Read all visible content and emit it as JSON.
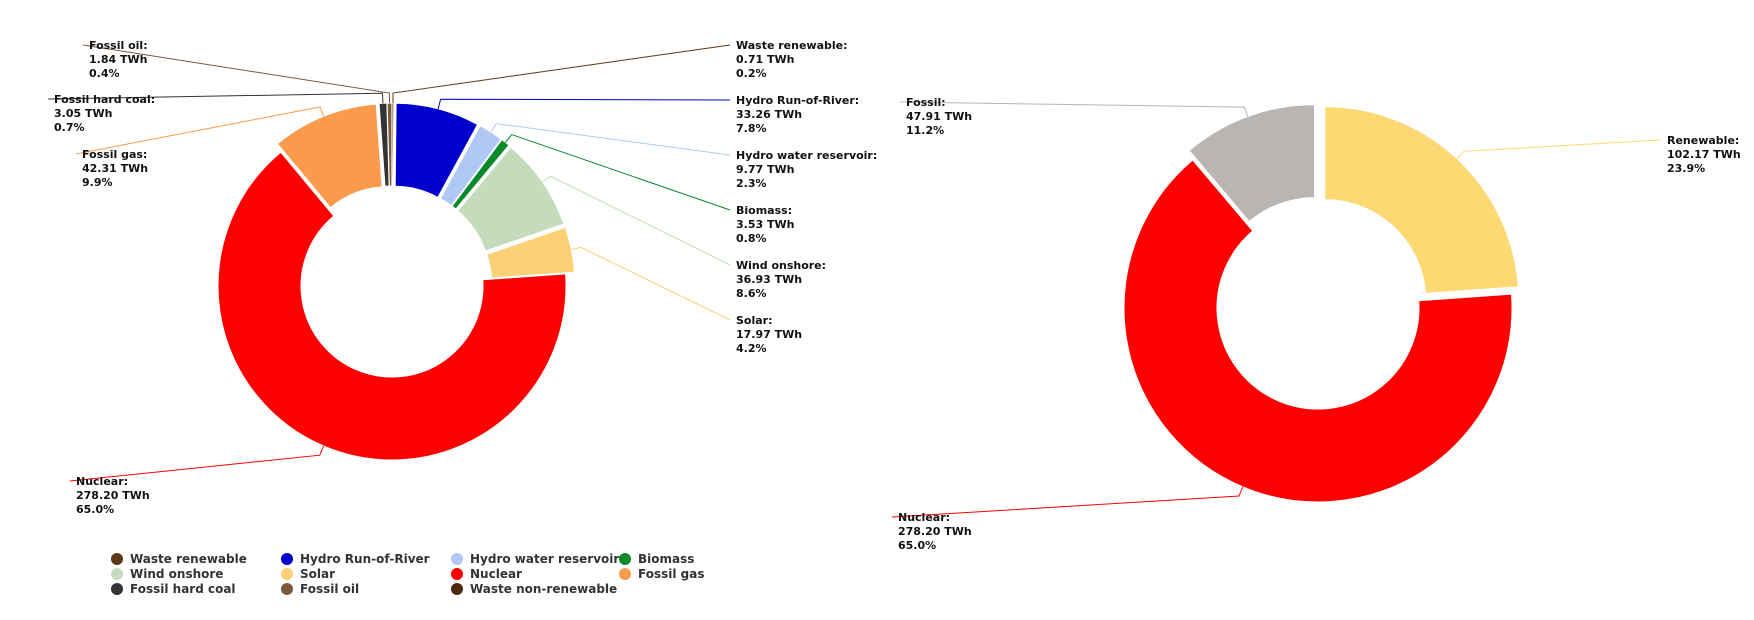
{
  "chart_data": [
    {
      "type": "pie",
      "variant": "donut",
      "unit": "TWh",
      "slices": [
        {
          "name": "Waste renewable",
          "label": "Waste renewable:",
          "value": 0.71,
          "value_text": "0.71 TWh",
          "percent_text": "0.2%",
          "color": "#5a3a14"
        },
        {
          "name": "Hydro Run-of-River",
          "label": "Hydro Run-of-River:",
          "value": 33.26,
          "value_text": "33.26 TWh",
          "percent_text": "7.8%",
          "color": "#0000cc"
        },
        {
          "name": "Hydro water reservoir",
          "label": "Hydro water reservoir:",
          "value": 9.77,
          "value_text": "9.77 TWh",
          "percent_text": "2.3%",
          "color": "#b0c8f5"
        },
        {
          "name": "Biomass",
          "label": "Biomass:",
          "value": 3.53,
          "value_text": "3.53 TWh",
          "percent_text": "0.8%",
          "color": "#0a8a2a"
        },
        {
          "name": "Wind onshore",
          "label": "Wind onshore:",
          "value": 36.93,
          "value_text": "36.93 TWh",
          "percent_text": "8.6%",
          "color": "#c4dcbc"
        },
        {
          "name": "Solar",
          "label": "Solar:",
          "value": 17.97,
          "value_text": "17.97 TWh",
          "percent_text": "4.2%",
          "color": "#fdd076"
        },
        {
          "name": "Nuclear",
          "label": "Nuclear:",
          "value": 278.2,
          "value_text": "278.20 TWh",
          "percent_text": "65.0%",
          "color": "#ff0000"
        },
        {
          "name": "Fossil gas",
          "label": "Fossil gas:",
          "value": 42.31,
          "value_text": "42.31 TWh",
          "percent_text": "9.9%",
          "color": "#f99a4d"
        },
        {
          "name": "Fossil hard coal",
          "label": "Fossil hard coal:",
          "value": 3.05,
          "value_text": "3.05 TWh",
          "percent_text": "0.7%",
          "color": "#333333"
        },
        {
          "name": "Fossil oil",
          "label": "Fossil oil:",
          "value": 1.84,
          "value_text": "1.84 TWh",
          "percent_text": "0.4%",
          "color": "#7b5a3c"
        }
      ]
    },
    {
      "type": "pie",
      "variant": "donut",
      "unit": "TWh",
      "slices": [
        {
          "name": "Renewable",
          "label": "Renewable:",
          "value": 102.17,
          "value_text": "102.17 TWh",
          "percent_text": "23.9%",
          "color": "#fdd873"
        },
        {
          "name": "Nuclear",
          "label": "Nuclear:",
          "value": 278.2,
          "value_text": "278.20 TWh",
          "percent_text": "65.0%",
          "color": "#ff0000"
        },
        {
          "name": "Fossil",
          "label": "Fossil:",
          "value": 47.91,
          "value_text": "47.91 TWh",
          "percent_text": "11.2%",
          "color": "#b9b5b2"
        }
      ]
    }
  ],
  "legend": {
    "placement": "bottom-left",
    "items": [
      {
        "label": "Waste renewable",
        "color": "#5a3a14"
      },
      {
        "label": "Hydro Run-of-River",
        "color": "#0000cc"
      },
      {
        "label": "Hydro water reservoir",
        "color": "#b0c8f5"
      },
      {
        "label": "Biomass",
        "color": "#0a8a2a"
      },
      {
        "label": "Wind onshore",
        "color": "#c4dcbc"
      },
      {
        "label": "Solar",
        "color": "#fdd076"
      },
      {
        "label": "Nuclear",
        "color": "#ff0000"
      },
      {
        "label": "Fossil gas",
        "color": "#f99a4d"
      },
      {
        "label": "Fossil hard coal",
        "color": "#333333"
      },
      {
        "label": "Fossil oil",
        "color": "#7b5a3c"
      },
      {
        "label": "Waste non-renewable",
        "color": "#4a2a0a"
      }
    ]
  }
}
